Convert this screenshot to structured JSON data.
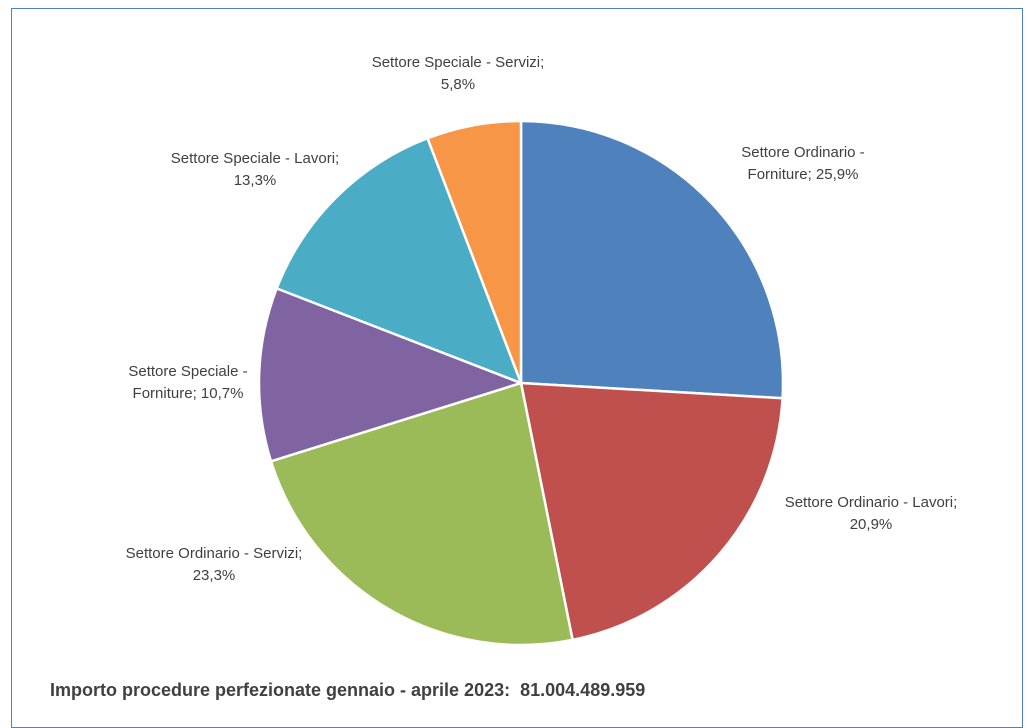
{
  "chart_data": {
    "type": "pie",
    "slices": [
      {
        "line1": "Settore Ordinario -",
        "line2": "Forniture; 25,9%",
        "value": 25.9,
        "color": "#4f81bd"
      },
      {
        "line1": "Settore Ordinario - Lavori;",
        "line2": "20,9%",
        "value": 20.9,
        "color": "#c0504d"
      },
      {
        "line1": "Settore Ordinario - Servizi;",
        "line2": "23,3%",
        "value": 23.3,
        "color": "#9bbb59"
      },
      {
        "line1": "Settore Speciale -",
        "line2": "Forniture; 10,7%",
        "value": 10.7,
        "color": "#8064a2"
      },
      {
        "line1": "Settore Speciale - Lavori;",
        "line2": "13,3%",
        "value": 13.3,
        "color": "#4bacc6"
      },
      {
        "line1": "Settore Speciale - Servizi;",
        "line2": "5,8%",
        "value": 5.8,
        "color": "#f79646"
      }
    ]
  },
  "footer": {
    "label": "Importo procedure perfezionate gennaio - aprile 2023:",
    "amount": "81.004.489.959"
  }
}
